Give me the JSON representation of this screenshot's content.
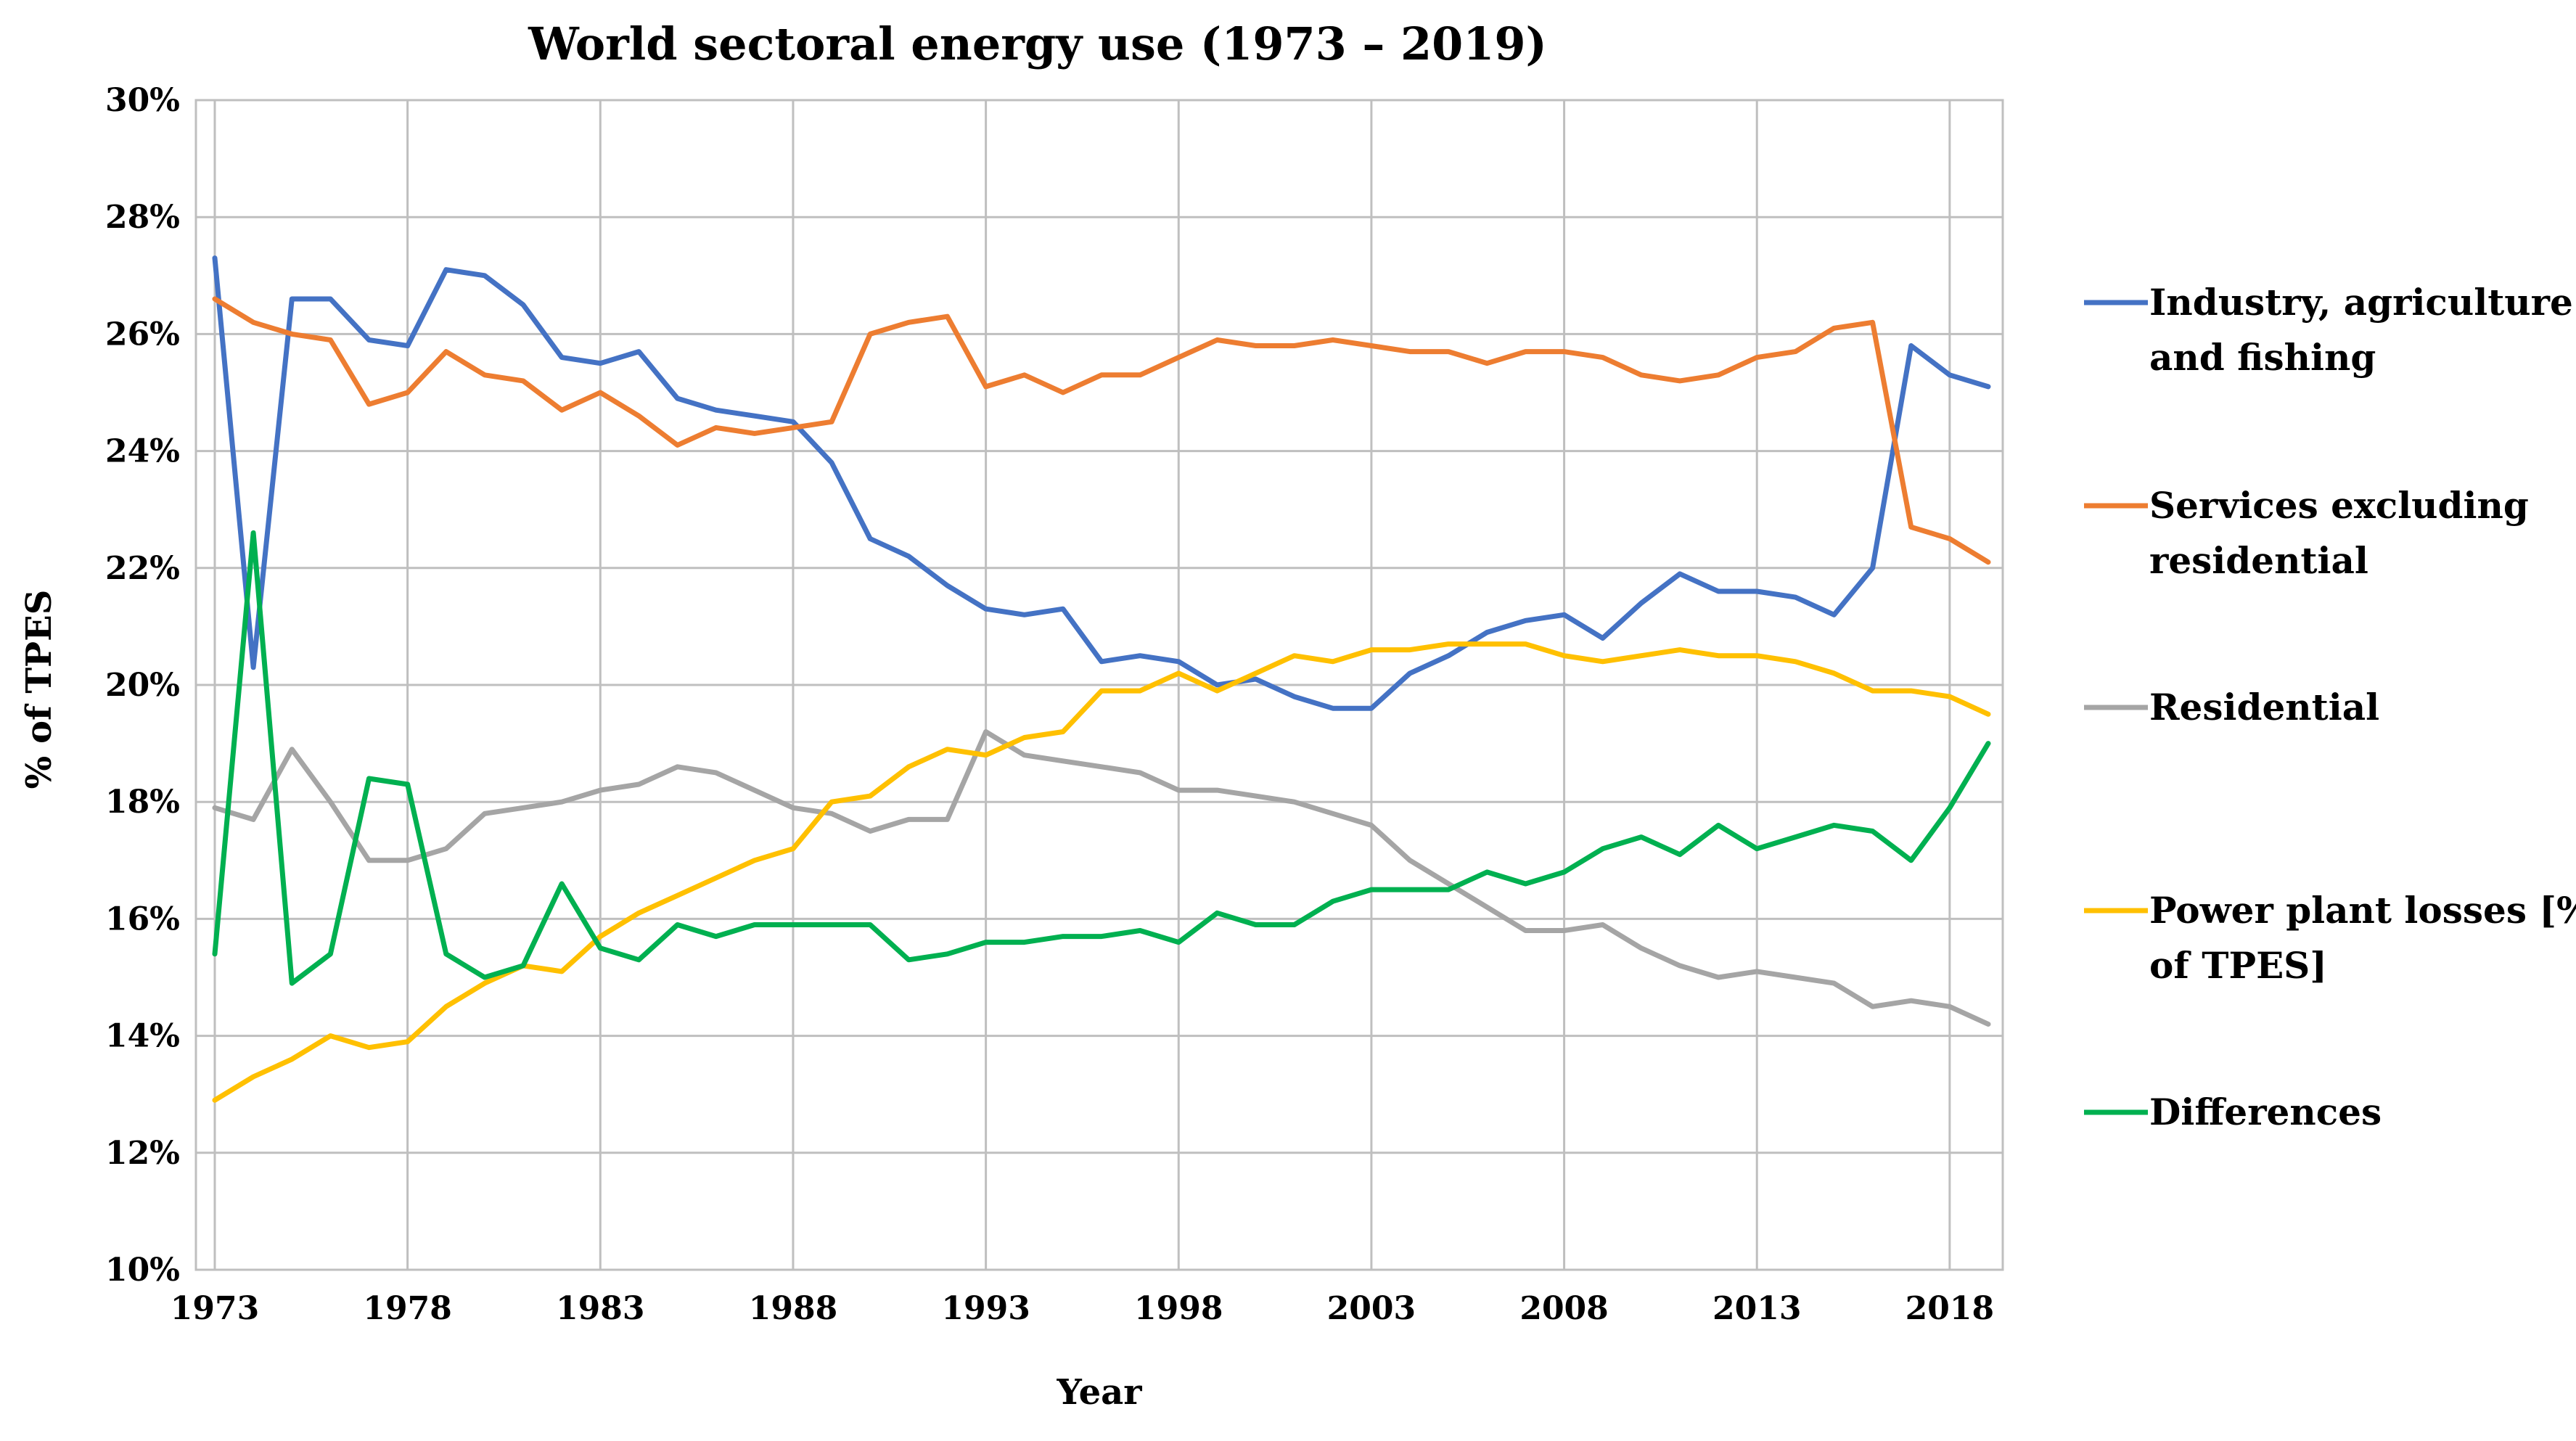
{
  "chart_data": {
    "type": "line",
    "title": "World sectoral energy use (1973 – 2019)",
    "xlabel": "Year",
    "ylabel": "% of TPES",
    "xlim": [
      1973,
      2019
    ],
    "ylim": [
      10,
      30
    ],
    "grid": true,
    "legend_position": "right",
    "x_ticks": [
      "1973",
      "1978",
      "1983",
      "1988",
      "1993",
      "1998",
      "2003",
      "2008",
      "2013",
      "2018"
    ],
    "y_ticks": [
      "10%",
      "12%",
      "14%",
      "16%",
      "18%",
      "20%",
      "22%",
      "24%",
      "26%",
      "28%",
      "30%"
    ],
    "x": [
      1973,
      1974,
      1975,
      1976,
      1977,
      1978,
      1979,
      1980,
      1981,
      1982,
      1983,
      1984,
      1985,
      1986,
      1987,
      1988,
      1989,
      1990,
      1991,
      1992,
      1993,
      1994,
      1995,
      1996,
      1997,
      1998,
      1999,
      2000,
      2001,
      2002,
      2003,
      2004,
      2005,
      2006,
      2007,
      2008,
      2009,
      2010,
      2011,
      2012,
      2013,
      2014,
      2015,
      2016,
      2017,
      2018,
      2019
    ],
    "series": [
      {
        "name": "Industry, agriculture and fishing",
        "legend_lines": [
          "Industry, agriculture",
          "and fishing"
        ],
        "color": "#4472C4",
        "values": [
          27.3,
          20.3,
          26.6,
          26.6,
          25.9,
          25.8,
          27.1,
          27.0,
          26.5,
          25.6,
          25.5,
          25.7,
          24.9,
          24.7,
          24.6,
          24.5,
          23.8,
          22.5,
          22.2,
          21.7,
          21.3,
          21.2,
          21.3,
          20.4,
          20.5,
          20.4,
          20.0,
          20.1,
          19.8,
          19.6,
          19.6,
          20.2,
          20.5,
          20.9,
          21.1,
          21.2,
          20.8,
          21.4,
          21.9,
          21.6,
          21.6,
          21.5,
          21.2,
          22.0,
          25.8,
          25.3,
          25.1
        ]
      },
      {
        "name": "Services excluding residential",
        "legend_lines": [
          "Services excluding",
          "residential"
        ],
        "color": "#ED7D31",
        "values": [
          26.6,
          26.2,
          26.0,
          25.9,
          24.8,
          25.0,
          25.7,
          25.3,
          25.2,
          24.7,
          25.0,
          24.6,
          24.1,
          24.4,
          24.3,
          24.4,
          24.5,
          26.0,
          26.2,
          26.3,
          25.1,
          25.3,
          25.0,
          25.3,
          25.3,
          25.6,
          25.9,
          25.8,
          25.8,
          25.9,
          25.8,
          25.7,
          25.7,
          25.5,
          25.7,
          25.7,
          25.6,
          25.3,
          25.2,
          25.3,
          25.6,
          25.7,
          26.1,
          26.2,
          22.7,
          22.5,
          22.1
        ]
      },
      {
        "name": "Residential",
        "legend_lines": [
          "Residential"
        ],
        "color": "#A5A5A5",
        "values": [
          17.9,
          17.7,
          18.9,
          18.0,
          17.0,
          17.0,
          17.2,
          17.8,
          17.9,
          18.0,
          18.2,
          18.3,
          18.6,
          18.5,
          18.2,
          17.9,
          17.8,
          17.5,
          17.7,
          17.7,
          19.2,
          18.8,
          18.7,
          18.6,
          18.5,
          18.2,
          18.2,
          18.1,
          18.0,
          17.8,
          17.6,
          17.0,
          16.6,
          16.2,
          15.8,
          15.8,
          15.9,
          15.5,
          15.2,
          15.0,
          15.1,
          15.0,
          14.9,
          14.5,
          14.6,
          14.5,
          14.2
        ]
      },
      {
        "name": "Power plant losses [% of TPES]",
        "legend_lines": [
          "Power plant losses [%",
          "of TPES]"
        ],
        "color": "#FFC000",
        "values": [
          12.9,
          13.3,
          13.6,
          14.0,
          13.8,
          13.9,
          14.5,
          14.9,
          15.2,
          15.1,
          15.7,
          16.1,
          16.4,
          16.7,
          17.0,
          17.2,
          18.0,
          18.1,
          18.6,
          18.9,
          18.8,
          19.1,
          19.2,
          19.9,
          19.9,
          20.2,
          19.9,
          20.2,
          20.5,
          20.4,
          20.6,
          20.6,
          20.7,
          20.7,
          20.7,
          20.5,
          20.4,
          20.5,
          20.6,
          20.5,
          20.5,
          20.4,
          20.2,
          19.9,
          19.9,
          19.8,
          19.5
        ]
      },
      {
        "name": "Differences",
        "legend_lines": [
          "Differences"
        ],
        "color": "#00B050",
        "values": [
          15.4,
          22.6,
          14.9,
          15.4,
          18.4,
          18.3,
          15.4,
          15.0,
          15.2,
          16.6,
          15.5,
          15.3,
          15.9,
          15.7,
          15.9,
          15.9,
          15.9,
          15.9,
          15.3,
          15.4,
          15.6,
          15.6,
          15.7,
          15.7,
          15.8,
          15.6,
          16.1,
          15.9,
          15.9,
          16.3,
          16.5,
          16.5,
          16.5,
          16.8,
          16.6,
          16.8,
          17.2,
          17.4,
          17.1,
          17.6,
          17.2,
          17.4,
          17.6,
          17.5,
          17.0,
          17.9,
          19.0
        ]
      }
    ]
  }
}
